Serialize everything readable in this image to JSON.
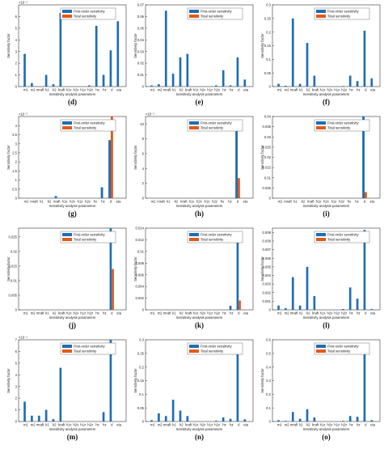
{
  "colors": {
    "first": "#1f6db4",
    "total": "#e05a1a",
    "axis": "#333333"
  },
  "legend": {
    "first": "First-order sensitivity",
    "total": "Total sensitivity"
  },
  "chart_data": [
    {
      "id": "d",
      "label": "(d)",
      "type": "bar",
      "ylabel": "Sensitivity factor",
      "xlabel": "Sensitivity analysis parameters",
      "exponent": "×10⁻³",
      "categories": [
        "m1",
        "m2",
        "mraft",
        "k1",
        "k2",
        "kraft",
        "h1x",
        "h2x",
        "h1z",
        "h2z",
        "hx",
        "hz",
        "d",
        "eta"
      ],
      "series": [
        {
          "name": "First-order sensitivity",
          "values": [
            2.8,
            0.3,
            0,
            1.0,
            0.2,
            6.3,
            0,
            0,
            0,
            0.1,
            5.2,
            1.0,
            3.1,
            5.6
          ]
        },
        {
          "name": "Total sensitivity",
          "values": [
            0,
            0,
            0,
            0,
            0,
            0,
            0,
            0,
            0,
            0,
            0,
            0,
            0,
            0
          ]
        }
      ],
      "yticks": [
        0,
        1,
        2,
        3,
        4,
        5,
        6
      ],
      "yticklabels": [
        "0",
        "1",
        "2",
        "3",
        "4",
        "5",
        "6"
      ],
      "ylim": [
        0,
        7
      ]
    },
    {
      "id": "e",
      "label": "(e)",
      "type": "bar",
      "ylabel": "Sensitivity factor",
      "xlabel": "Sensitivity analysis parameters",
      "categories": [
        "m1",
        "m2",
        "mraft",
        "k1",
        "k2",
        "kraft",
        "h1x",
        "h2x",
        "h1z",
        "h2z",
        "hx",
        "hz",
        "d",
        "eta"
      ],
      "series": [
        {
          "name": "First-order sensitivity",
          "values": [
            0.001,
            0.002,
            0.065,
            0.011,
            0.025,
            0.028,
            0,
            0,
            0,
            0.001,
            0.014,
            0.001,
            0.025,
            0.006
          ]
        },
        {
          "name": "Total sensitivity",
          "values": [
            0,
            0,
            0,
            0,
            0,
            0,
            0,
            0,
            0,
            0,
            0,
            0,
            0,
            0
          ]
        }
      ],
      "yticks": [
        0,
        0.01,
        0.02,
        0.03,
        0.04,
        0.05,
        0.06,
        0.07
      ],
      "yticklabels": [
        "0",
        "0.01",
        "0.02",
        "0.03",
        "0.04",
        "0.05",
        "0.06",
        "0.07"
      ],
      "ylim": [
        0,
        0.07
      ]
    },
    {
      "id": "f",
      "label": "(f)",
      "type": "bar",
      "ylabel": "Sensitivity factor",
      "xlabel": "Sensitivity analysis parameters",
      "categories": [
        "m1",
        "m2",
        "mraft",
        "k1",
        "k2",
        "kraft",
        "h1x",
        "h2x",
        "h1z",
        "h2z",
        "hx",
        "hz",
        "d",
        "eta"
      ],
      "series": [
        {
          "name": "First-order sensitivity",
          "values": [
            0.01,
            0.003,
            0.25,
            0.01,
            0.16,
            0.04,
            0,
            0,
            0,
            0.002,
            0.04,
            0.02,
            0.205,
            0.03
          ]
        },
        {
          "name": "Total sensitivity",
          "values": [
            0,
            0,
            0,
            0,
            0,
            0,
            0,
            0,
            0,
            0,
            0,
            0,
            0,
            0
          ]
        }
      ],
      "yticks": [
        0,
        0.05,
        0.1,
        0.15,
        0.2,
        0.25,
        0.3
      ],
      "yticklabels": [
        "0",
        "0.05",
        "0.1",
        "0.15",
        "0.2",
        "0.25",
        "0.3"
      ],
      "ylim": [
        0,
        0.3
      ]
    },
    {
      "id": "g",
      "label": "(g)",
      "type": "bar",
      "ylabel": "Sensitivity factor",
      "xlabel": "Sensitivity analysis parameters",
      "exponent": "×10⁻⁵",
      "categories": [
        "m2",
        "mraft",
        "k1",
        "k2",
        "kraft",
        "h1x",
        "h2x",
        "h1z",
        "h2z",
        "hx",
        "hz",
        "d",
        "eta"
      ],
      "series": [
        {
          "name": "First-order sensitivity",
          "values": [
            0,
            0,
            0,
            0,
            0.12,
            0,
            0,
            0,
            0,
            0,
            0.6,
            3.2,
            0
          ]
        },
        {
          "name": "Total sensitivity",
          "values": [
            0,
            0,
            0,
            0,
            0,
            0,
            0,
            0,
            0,
            0,
            0,
            4.6,
            0
          ]
        }
      ],
      "yticks": [
        0,
        0.5,
        1,
        1.5,
        2,
        2.5,
        3,
        3.5,
        4
      ],
      "yticklabels": [
        "0",
        "0.5",
        "1",
        "1.5",
        "2",
        "2.5",
        "3",
        "3.5",
        "4"
      ],
      "ylim": [
        0,
        4.5
      ]
    },
    {
      "id": "h",
      "label": "(h)",
      "type": "bar",
      "ylabel": "Sensitivity factor",
      "xlabel": "Sensitivity analysis parameters",
      "exponent": "×10⁻³",
      "categories": [
        "m2",
        "mraft",
        "k1",
        "k2",
        "kraft",
        "h1x",
        "h2x",
        "h1z",
        "h2z",
        "hx",
        "hz",
        "d",
        "eta"
      ],
      "series": [
        {
          "name": "First-order sensitivity",
          "values": [
            0,
            0,
            0,
            0,
            0,
            0,
            0,
            0,
            0,
            0,
            0,
            9.3,
            0
          ]
        },
        {
          "name": "Total sensitivity",
          "values": [
            0,
            0,
            0,
            0,
            0,
            0,
            0,
            0,
            0,
            0,
            0,
            2.7,
            0
          ]
        }
      ],
      "yticks": [
        0,
        2,
        4,
        6,
        8,
        10
      ],
      "yticklabels": [
        "0",
        "2",
        "4",
        "6",
        "8",
        "10"
      ],
      "ylim": [
        0,
        11
      ]
    },
    {
      "id": "i",
      "label": "(i)",
      "type": "bar",
      "ylabel": "Sensitivity factor",
      "xlabel": "Sensitivity analysis parameters",
      "categories": [
        "m2",
        "mraft",
        "k1",
        "k2",
        "kraft",
        "h1x",
        "h2x",
        "h1z",
        "h2z",
        "hx",
        "hz",
        "d",
        "eta"
      ],
      "series": [
        {
          "name": "First-order sensitivity",
          "values": [
            0,
            0,
            0,
            0,
            0,
            0,
            0,
            0,
            0,
            0,
            0,
            0.04,
            0
          ]
        },
        {
          "name": "Total sensitivity",
          "values": [
            0,
            0,
            0,
            0,
            0,
            0,
            0,
            0,
            0,
            0,
            0,
            0.003,
            0
          ]
        }
      ],
      "yticks": [
        0,
        0.005,
        0.01,
        0.015,
        0.02,
        0.025,
        0.03,
        0.035,
        0.04
      ],
      "yticklabels": [
        "0",
        "0.005",
        "0.01",
        "0.015",
        "0.02",
        "0.025",
        "0.03",
        "0.035",
        "0.04"
      ],
      "ylim": [
        0,
        0.04
      ]
    },
    {
      "id": "j",
      "label": "(j)",
      "type": "bar",
      "ylabel": "Sensitivity factor",
      "xlabel": "Sensitivity analysis parameters",
      "categories": [
        "m1",
        "m2",
        "mraft",
        "k1",
        "k2",
        "kraft",
        "h1x",
        "h2x",
        "h1z",
        "h2z",
        "hx",
        "hz",
        "d",
        "eta"
      ],
      "series": [
        {
          "name": "First-order sensitivity",
          "values": [
            0,
            0,
            0,
            0,
            0,
            0,
            0,
            0,
            0,
            0,
            0,
            0,
            0.028,
            0
          ]
        },
        {
          "name": "Total sensitivity",
          "values": [
            0,
            0,
            0,
            0,
            0,
            0,
            0,
            0,
            0,
            0,
            0,
            0,
            0.014,
            0
          ]
        }
      ],
      "yticks": [
        0,
        0.005,
        0.01,
        0.015,
        0.02,
        0.025
      ],
      "yticklabels": [
        "0",
        "0.005",
        "0.01",
        "0.015",
        "0.02",
        "0.025"
      ],
      "ylim": [
        0,
        0.028
      ]
    },
    {
      "id": "k",
      "label": "(k)",
      "type": "bar",
      "ylabel": "Sensitivity factor",
      "xlabel": "Sensitivity analysis parameters",
      "categories": [
        "m1",
        "m2",
        "mraft",
        "k1",
        "k2",
        "kraft",
        "h1x",
        "h2x",
        "h1z",
        "h2z",
        "hx",
        "hz",
        "d",
        "eta"
      ],
      "series": [
        {
          "name": "First-order sensitivity",
          "values": [
            0,
            0,
            0,
            0,
            0,
            0,
            0,
            0,
            0,
            0,
            0,
            0.0007,
            0.0133,
            0
          ]
        },
        {
          "name": "Total sensitivity",
          "values": [
            0,
            0,
            0,
            0,
            0,
            0,
            0,
            0,
            0,
            0,
            0,
            0,
            0.0016,
            0
          ]
        }
      ],
      "yticks": [
        0,
        0.002,
        0.004,
        0.006,
        0.008,
        0.01,
        0.012,
        0.014
      ],
      "yticklabels": [
        "0",
        "0.002",
        "0.004",
        "0.006",
        "0.008",
        "0.01",
        "0.012",
        "0.014"
      ],
      "ylim": [
        0,
        0.014
      ]
    },
    {
      "id": "l",
      "label": "(l)",
      "type": "bar",
      "ylabel": "Sensitivity factor",
      "xlabel": "Sensitivity analysis parameters",
      "categories": [
        "m1",
        "m2",
        "mraft",
        "k1",
        "k2",
        "kraft",
        "h1x",
        "h2x",
        "h1z",
        "h2z",
        "hx",
        "hz",
        "d",
        "eta"
      ],
      "series": [
        {
          "name": "First-order sensitivity",
          "values": [
            0.0005,
            0.0002,
            0.0038,
            0.0005,
            0.005,
            0.0016,
            0,
            0,
            0,
            0.0001,
            0.0026,
            0.0013,
            0.0093,
            0.0001
          ]
        },
        {
          "name": "Total sensitivity",
          "values": [
            0,
            0,
            0,
            0,
            0,
            0,
            0,
            0,
            0,
            0,
            0,
            0,
            0,
            0
          ]
        }
      ],
      "yticks": [
        0,
        0.001,
        0.002,
        0.003,
        0.004,
        0.005,
        0.006,
        0.007,
        0.008,
        0.009
      ],
      "yticklabels": [
        "0",
        "0.001",
        "0.002",
        "0.003",
        "0.004",
        "0.005",
        "0.006",
        "0.007",
        "0.008",
        "0.009"
      ],
      "ylim": [
        0,
        0.0095
      ]
    },
    {
      "id": "m",
      "label": "(m)",
      "type": "bar",
      "ylabel": "Sensitivity factor",
      "xlabel": "Sensitivity analysis parameters",
      "exponent": "×10⁻⁴",
      "categories": [
        "m1",
        "m2",
        "mraft",
        "k1",
        "k2",
        "kraft",
        "h1x",
        "h2x",
        "h1z",
        "h2z",
        "hx",
        "hz",
        "d",
        "eta"
      ],
      "series": [
        {
          "name": "First-order sensitivity",
          "values": [
            1.7,
            0.5,
            0.5,
            1.0,
            0.2,
            4.6,
            0,
            0,
            0,
            0,
            0,
            0.8,
            7.0,
            0
          ]
        },
        {
          "name": "Total sensitivity",
          "values": [
            0,
            0,
            0,
            0,
            0,
            0,
            0,
            0,
            0,
            0,
            0,
            0,
            0,
            0
          ]
        }
      ],
      "yticks": [
        0,
        1,
        2,
        3,
        4,
        5,
        6,
        7
      ],
      "yticklabels": [
        "0",
        "1",
        "2",
        "3",
        "4",
        "5",
        "6",
        "7"
      ],
      "ylim": [
        0,
        7
      ]
    },
    {
      "id": "n",
      "label": "(n)",
      "type": "bar",
      "ylabel": "Sensitivity factor",
      "xlabel": "Sensitivity analysis parameters",
      "categories": [
        "m1",
        "m2",
        "mraft",
        "k1",
        "k2",
        "kraft",
        "h1x",
        "h2x",
        "h1z",
        "h2z",
        "hx",
        "hz",
        "d",
        "eta"
      ],
      "series": [
        {
          "name": "First-order sensitivity",
          "values": [
            0.005,
            0.03,
            0.02,
            0.08,
            0.04,
            0.02,
            0,
            0,
            0,
            0.003,
            0.015,
            0.01,
            0.26,
            0.008
          ]
        },
        {
          "name": "Total sensitivity",
          "values": [
            0,
            0,
            0,
            0,
            0,
            0,
            0,
            0,
            0,
            0,
            0,
            0,
            0,
            0
          ]
        }
      ],
      "yticks": [
        0,
        0.05,
        0.1,
        0.15,
        0.2,
        0.25,
        0.3
      ],
      "yticklabels": [
        "0",
        "0.05",
        "0.1",
        "0.15",
        "0.2",
        "0.25",
        "0.3"
      ],
      "ylim": [
        0,
        0.3
      ]
    },
    {
      "id": "o",
      "label": "(o)",
      "type": "bar",
      "ylabel": "Sensitivity factor",
      "xlabel": "Sensitivity analysis parameters",
      "categories": [
        "m1",
        "m2",
        "mraft",
        "k1",
        "k2",
        "kraft",
        "h1x",
        "h2x",
        "h1z",
        "h2z",
        "hx",
        "hz",
        "d",
        "eta"
      ],
      "series": [
        {
          "name": "First-order sensitivity",
          "values": [
            0.01,
            0.005,
            0.07,
            0.02,
            0.09,
            0.03,
            0,
            0,
            0,
            0.005,
            0.04,
            0.035,
            0.51,
            0.01
          ]
        },
        {
          "name": "Total sensitivity",
          "values": [
            0,
            0,
            0,
            0,
            0,
            0,
            0,
            0,
            0,
            0,
            0,
            0,
            0,
            0
          ]
        }
      ],
      "yticks": [
        0,
        0.1,
        0.2,
        0.3,
        0.4,
        0.5,
        0.6
      ],
      "yticklabels": [
        "0",
        "0.1",
        "0.2",
        "0.3",
        "0.4",
        "0.5",
        "0.6"
      ],
      "ylim": [
        0,
        0.6
      ]
    }
  ]
}
